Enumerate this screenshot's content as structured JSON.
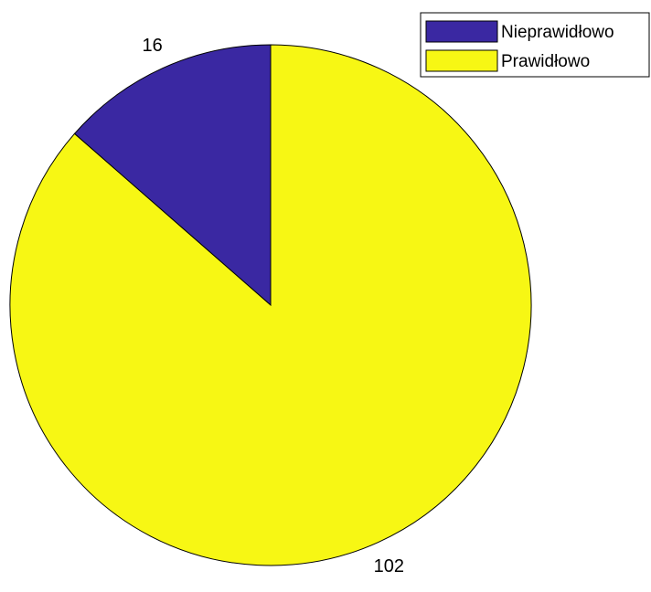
{
  "chart_data": {
    "type": "pie",
    "title": "",
    "series": [
      {
        "name": "Nieprawidłowo",
        "value": 16,
        "label": "16",
        "color": "#3a28a2"
      },
      {
        "name": "Prawidłowo",
        "value": 102,
        "label": "102",
        "color": "#f7f714"
      }
    ],
    "start_angle": "12 o'clock",
    "direction": "counter-clockwise",
    "legend": {
      "placement": "top-right",
      "entries": [
        "Nieprawidłowo",
        "Prawidłowo"
      ]
    },
    "slice_edge_color": "#000000"
  }
}
